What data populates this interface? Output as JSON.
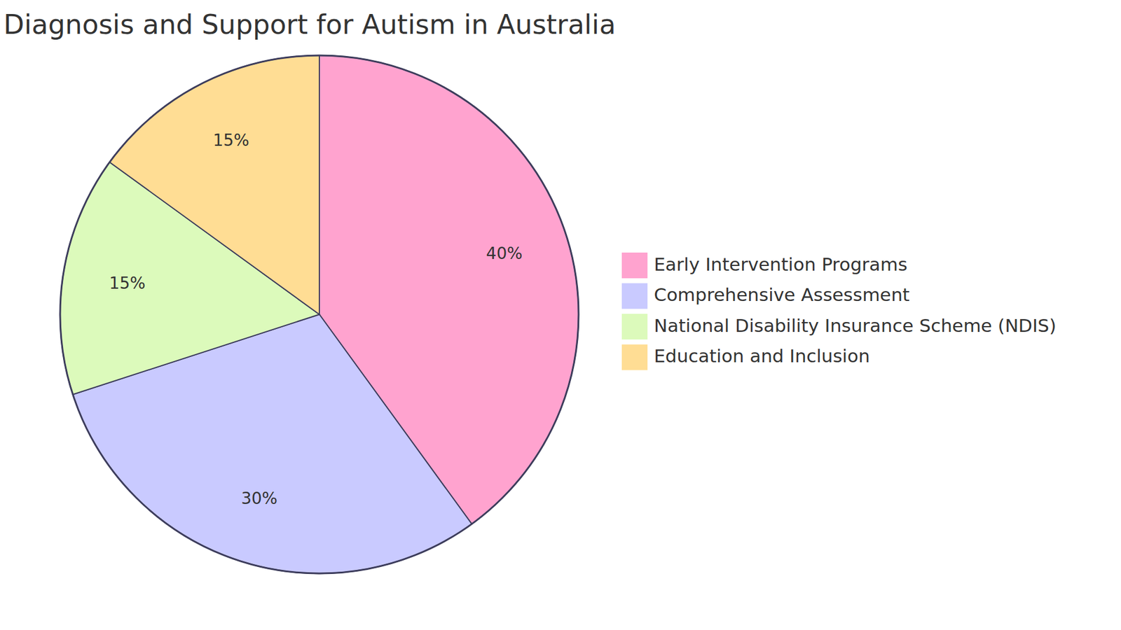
{
  "chart_data": {
    "type": "pie",
    "title": "Diagnosis and Support for Autism in Australia",
    "categories": [
      "Early Intervention Programs",
      "Comprehensive Assessment",
      "National Disability Insurance Scheme (NDIS)",
      "Education and Inclusion"
    ],
    "values": [
      40,
      30,
      15,
      15
    ],
    "value_labels": [
      "40%",
      "30%",
      "15%",
      "15%"
    ],
    "colors": [
      "#ffa3cf",
      "#c9caff",
      "#dcfabb",
      "#ffdd94"
    ],
    "data_labels": true,
    "legend": "right"
  }
}
